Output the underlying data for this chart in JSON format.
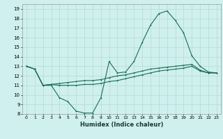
{
  "xlabel": "Humidex (Indice chaleur)",
  "bg_color": "#cff0ee",
  "grid_color": "#b8ddd8",
  "line_color": "#1a6b5a",
  "xlim": [
    -0.5,
    23.5
  ],
  "ylim": [
    8,
    19.5
  ],
  "xticks": [
    0,
    1,
    2,
    3,
    4,
    5,
    6,
    7,
    8,
    9,
    10,
    11,
    12,
    13,
    14,
    15,
    16,
    17,
    18,
    19,
    20,
    21,
    22,
    23
  ],
  "yticks": [
    8,
    9,
    10,
    11,
    12,
    13,
    14,
    15,
    16,
    17,
    18,
    19
  ],
  "line1_x": [
    0,
    1,
    2,
    3,
    4,
    5,
    6,
    7,
    8,
    9,
    10,
    11,
    12,
    13,
    14,
    15,
    16,
    17,
    18,
    19,
    20,
    21,
    22,
    23
  ],
  "line1_y": [
    13,
    12.7,
    11,
    11,
    9.7,
    9.3,
    8.3,
    8.1,
    8.1,
    9.7,
    13.5,
    12.3,
    12.4,
    13.5,
    15.5,
    17.3,
    18.5,
    18.8,
    17.8,
    16.5,
    14.1,
    13.0,
    12.4,
    12.3
  ],
  "line2_x": [
    0,
    1,
    2,
    3,
    4,
    5,
    6,
    7,
    8,
    9,
    10,
    11,
    12,
    13,
    14,
    15,
    16,
    17,
    18,
    19,
    20,
    21,
    22,
    23
  ],
  "line2_y": [
    13,
    12.7,
    11.0,
    11.1,
    11.0,
    11.0,
    11.0,
    11.1,
    11.1,
    11.2,
    11.4,
    11.5,
    11.7,
    11.9,
    12.1,
    12.3,
    12.5,
    12.6,
    12.7,
    12.8,
    13.0,
    12.5,
    12.3,
    12.3
  ],
  "line3_x": [
    0,
    1,
    2,
    3,
    4,
    5,
    6,
    7,
    8,
    9,
    10,
    11,
    12,
    13,
    14,
    15,
    16,
    17,
    18,
    19,
    20,
    21,
    22,
    23
  ],
  "line3_y": [
    13,
    12.7,
    11.0,
    11.1,
    11.2,
    11.3,
    11.4,
    11.5,
    11.5,
    11.6,
    11.8,
    12.0,
    12.1,
    12.3,
    12.5,
    12.7,
    12.8,
    12.9,
    13.0,
    13.1,
    13.2,
    12.6,
    12.3,
    12.3
  ]
}
